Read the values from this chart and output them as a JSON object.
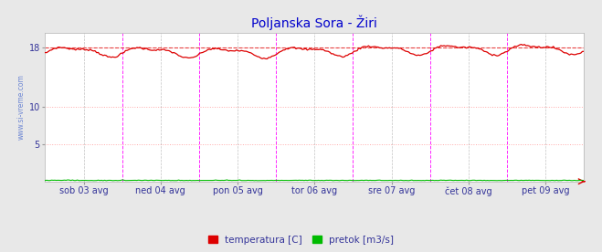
{
  "title": "Poljanska Sora - Žiri",
  "title_color": "#0000cc",
  "bg_color": "#e8e8e8",
  "plot_bg_color": "#ffffff",
  "x_labels": [
    "sob 03 avg",
    "ned 04 avg",
    "pon 05 avg",
    "tor 06 avg",
    "sre 07 avg",
    "čet 08 avg",
    "pet 09 avg"
  ],
  "y_ticks": [
    5,
    10,
    18
  ],
  "ylim": [
    0,
    20
  ],
  "temp_color": "#dd0000",
  "flow_color": "#00bb00",
  "grid_color_h": "#ffaaaa",
  "grid_color_v_major": "#ff00ff",
  "grid_color_v_minor": "#555555",
  "avg_line_color": "#dd0000",
  "avg_line_value": 18.0,
  "n_points": 336,
  "legend_temp_label": "temperatura [C]",
  "legend_flow_label": "pretok [m3/s]",
  "label_color": "#333399",
  "figsize": [
    6.59,
    2.76
  ],
  "dpi": 100
}
